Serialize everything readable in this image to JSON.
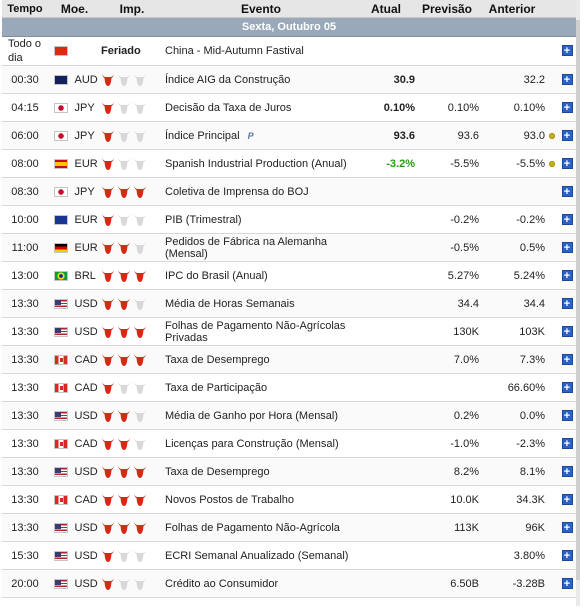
{
  "headers": {
    "time": "Tempo",
    "currency": "Moe.",
    "importance": "Imp.",
    "event": "Evento",
    "actual": "Atual",
    "forecast": "Previsão",
    "previous": "Anterior"
  },
  "date_band": "Sexta, Outubro 05",
  "colors": {
    "bull_active": "#d42a16",
    "bull_inactive": "#d8d8d8",
    "positive": "#2a9a16",
    "band": "#9aa9b9",
    "add_button": "#2a63c4"
  },
  "rows": [
    {
      "time": "Todo o dia",
      "flag": "cn",
      "currency": "",
      "importance": null,
      "holiday": "Feriado",
      "event": "China - Mid-Autumn Fastival",
      "actual": "",
      "forecast": "",
      "previous": "",
      "note": "",
      "dot": false
    },
    {
      "time": "00:30",
      "flag": "au",
      "currency": "AUD",
      "importance": 1,
      "holiday": "",
      "event": "Índice AIG da Construção",
      "actual": "30.9",
      "forecast": "",
      "previous": "32.2",
      "note": "",
      "dot": false
    },
    {
      "time": "04:15",
      "flag": "jp",
      "currency": "JPY",
      "importance": 1,
      "holiday": "",
      "event": "Decisão da Taxa de Juros",
      "actual": "0.10%",
      "forecast": "0.10%",
      "previous": "0.10%",
      "note": "",
      "dot": false
    },
    {
      "time": "06:00",
      "flag": "jp",
      "currency": "JPY",
      "importance": 1,
      "holiday": "",
      "event": "Índice Principal",
      "actual": "93.6",
      "forecast": "93.6",
      "previous": "93.0",
      "note": "P",
      "dot": true
    },
    {
      "time": "08:00",
      "flag": "es",
      "currency": "EUR",
      "importance": 1,
      "holiday": "",
      "event": "Spanish Industrial Production (Anual)",
      "actual": "-3.2%",
      "actual_positive": true,
      "forecast": "-5.5%",
      "previous": "-5.5%",
      "note": "",
      "dot": true
    },
    {
      "time": "08:30",
      "flag": "jp",
      "currency": "JPY",
      "importance": 3,
      "holiday": "",
      "event": "Coletiva de Imprensa do BOJ",
      "actual": "",
      "forecast": "",
      "previous": "",
      "note": "",
      "dot": false
    },
    {
      "time": "10:00",
      "flag": "eu",
      "currency": "EUR",
      "importance": 1,
      "holiday": "",
      "event": "PIB (Trimestral)",
      "actual": "",
      "forecast": "-0.2%",
      "previous": "-0.2%",
      "note": "",
      "dot": false
    },
    {
      "time": "11:00",
      "flag": "de",
      "currency": "EUR",
      "importance": 2,
      "holiday": "",
      "event": "Pedidos de Fábrica na Alemanha (Mensal)",
      "actual": "",
      "forecast": "-0.5%",
      "previous": "0.5%",
      "note": "",
      "dot": false
    },
    {
      "time": "13:00",
      "flag": "br",
      "currency": "BRL",
      "importance": 3,
      "holiday": "",
      "event": "IPC do Brasil (Anual)",
      "actual": "",
      "forecast": "5.27%",
      "previous": "5.24%",
      "note": "",
      "dot": false
    },
    {
      "time": "13:30",
      "flag": "us",
      "currency": "USD",
      "importance": 2,
      "holiday": "",
      "event": "Média de Horas Semanais",
      "actual": "",
      "forecast": "34.4",
      "previous": "34.4",
      "note": "",
      "dot": false
    },
    {
      "time": "13:30",
      "flag": "us",
      "currency": "USD",
      "importance": 3,
      "holiday": "",
      "event": "Folhas de Pagamento Não-Agrícolas Privadas",
      "actual": "",
      "forecast": "130K",
      "previous": "103K",
      "note": "",
      "dot": false
    },
    {
      "time": "13:30",
      "flag": "ca",
      "currency": "CAD",
      "importance": 3,
      "holiday": "",
      "event": "Taxa de Desemprego",
      "actual": "",
      "forecast": "7.0%",
      "previous": "7.3%",
      "note": "",
      "dot": false
    },
    {
      "time": "13:30",
      "flag": "ca",
      "currency": "CAD",
      "importance": 1,
      "holiday": "",
      "event": "Taxa de Participação",
      "actual": "",
      "forecast": "",
      "previous": "66.60%",
      "note": "",
      "dot": false
    },
    {
      "time": "13:30",
      "flag": "us",
      "currency": "USD",
      "importance": 2,
      "holiday": "",
      "event": "Média de Ganho por Hora (Mensal)",
      "actual": "",
      "forecast": "0.2%",
      "previous": "0.0%",
      "note": "",
      "dot": false
    },
    {
      "time": "13:30",
      "flag": "ca",
      "currency": "CAD",
      "importance": 2,
      "holiday": "",
      "event": "Licenças para Construção (Mensal)",
      "actual": "",
      "forecast": "-1.0%",
      "previous": "-2.3%",
      "note": "",
      "dot": false
    },
    {
      "time": "13:30",
      "flag": "us",
      "currency": "USD",
      "importance": 3,
      "holiday": "",
      "event": "Taxa de Desemprego",
      "actual": "",
      "forecast": "8.2%",
      "previous": "8.1%",
      "note": "",
      "dot": false
    },
    {
      "time": "13:30",
      "flag": "ca",
      "currency": "CAD",
      "importance": 3,
      "holiday": "",
      "event": "Novos Postos de Trabalho",
      "actual": "",
      "forecast": "10.0K",
      "previous": "34.3K",
      "note": "",
      "dot": false
    },
    {
      "time": "13:30",
      "flag": "us",
      "currency": "USD",
      "importance": 3,
      "holiday": "",
      "event": "Folhas de Pagamento Não-Agrícola",
      "actual": "",
      "forecast": "113K",
      "previous": "96K",
      "note": "",
      "dot": false
    },
    {
      "time": "15:30",
      "flag": "us",
      "currency": "USD",
      "importance": 1,
      "holiday": "",
      "event": "ECRI Semanal Anualizado (Semanal)",
      "actual": "",
      "forecast": "",
      "previous": "3.80%",
      "note": "",
      "dot": false
    },
    {
      "time": "20:00",
      "flag": "us",
      "currency": "USD",
      "importance": 1,
      "holiday": "",
      "event": "Crédito ao Consumidor",
      "actual": "",
      "forecast": "6.50B",
      "previous": "-3.28B",
      "note": "",
      "dot": false
    }
  ]
}
